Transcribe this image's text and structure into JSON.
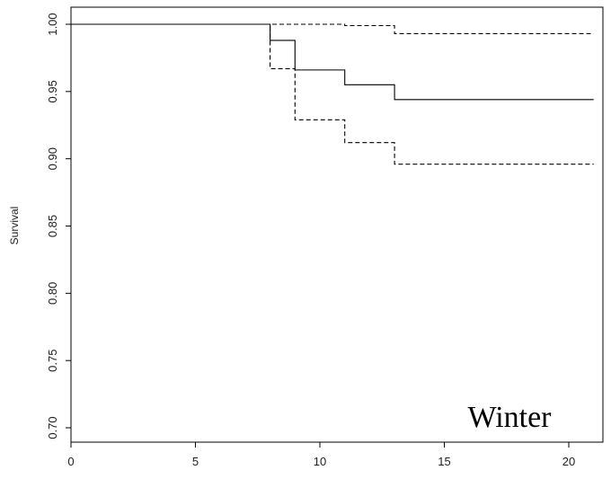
{
  "chart_data": {
    "type": "line",
    "title": "",
    "xlabel": "",
    "ylabel": "Survival",
    "annotation": "Winter",
    "xlim": [
      0,
      21
    ],
    "ylim": [
      0.7,
      1.0
    ],
    "x_ticks": [
      "0",
      "5",
      "10",
      "15",
      "20"
    ],
    "y_ticks": [
      "0.70",
      "0.75",
      "0.80",
      "0.85",
      "0.90",
      "0.95",
      "1.00"
    ],
    "grid": false,
    "legend": "none",
    "step": true,
    "series": [
      {
        "style": "solid",
        "x": [
          0,
          8,
          9,
          11,
          13,
          21
        ],
        "y": [
          1.0,
          0.988,
          0.966,
          0.955,
          0.944,
          0.944
        ]
      },
      {
        "style": "dashed",
        "x": [
          0,
          8,
          9,
          11,
          13,
          21
        ],
        "y": [
          1.0,
          1.0,
          1.0,
          0.999,
          0.993,
          0.993
        ]
      },
      {
        "style": "dashed",
        "x": [
          0,
          8,
          9,
          11,
          13,
          21
        ],
        "y": [
          1.0,
          0.967,
          0.929,
          0.912,
          0.896,
          0.896
        ]
      }
    ]
  }
}
